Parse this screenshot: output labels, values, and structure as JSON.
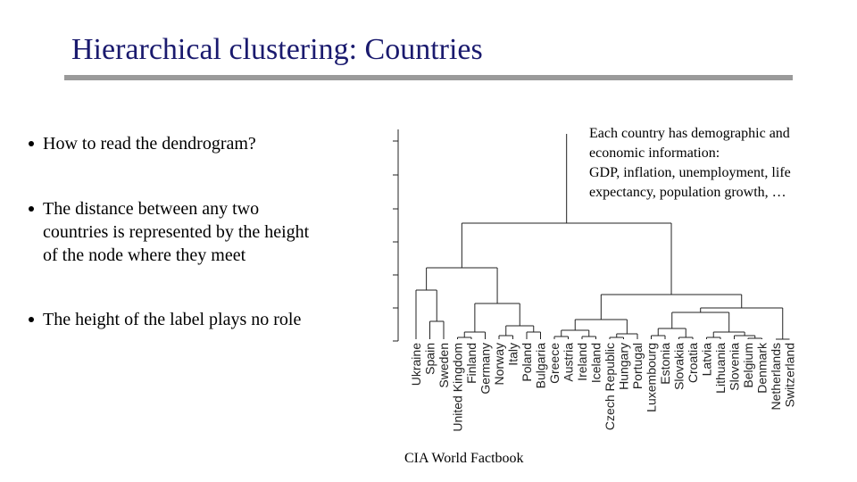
{
  "header": {
    "title": "Hierarchical clustering: Countries"
  },
  "bullets": [
    [
      "How to read the dendrogram?"
    ],
    [
      "The distance between any two",
      "countries is represented by the height",
      "of the node where they meet"
    ],
    [
      "The height of the label plays no role"
    ]
  ],
  "note": [
    "Each country has demographic and",
    "economic information:",
    "GDP, inflation, unemployment, life",
    "expectancy, population growth, …"
  ],
  "dendrogram": {
    "leaves": [
      "Ukraine",
      "Spain",
      "Sweden",
      "United Kingdom",
      "Finland",
      "Germany",
      "Norway",
      "Italy",
      "Poland",
      "Bulgaria",
      "Greece",
      "Austria",
      "Ireland",
      "Iceland",
      "Czech Republic",
      "Hungary",
      "Portugal",
      "Luxembourg",
      "Estonia",
      "Slovakia",
      "Croatia",
      "Latvia",
      "Lithuania",
      "Slovenia",
      "Belgium",
      "Denmark",
      "Netherlands",
      "Switzerland"
    ]
  },
  "source": "CIA World Factbook"
}
